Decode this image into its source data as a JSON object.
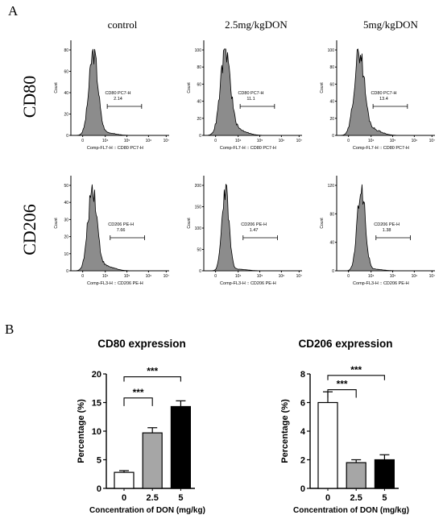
{
  "panel_labels": {
    "a": "A",
    "b": "B"
  },
  "columns": [
    "control",
    "2.5mg/kgDON",
    "5mg/kgDON"
  ],
  "rows": [
    "CD80",
    "CD206"
  ],
  "flow": {
    "ylabel": "Count",
    "cd80": {
      "gate": "CD80 PC7-H",
      "xlabel": "Comp-FL7-H :: CD80 PC7-H",
      "values": [
        "2.14",
        "11.1",
        "13.4"
      ],
      "yticks": [
        [
          "0",
          "20",
          "40",
          "60",
          "80"
        ],
        [
          "0",
          "20",
          "40",
          "60",
          "80",
          "100"
        ],
        [
          "0",
          "20",
          "40",
          "60",
          "80",
          "100"
        ]
      ]
    },
    "cd206": {
      "gate": "CD206 PE-H",
      "xlabel": "Comp-FL3-H :: CD206 PE-H",
      "values": [
        "7.66",
        "1.47",
        "1.38"
      ],
      "yticks": [
        [
          "0",
          "10",
          "20",
          "30",
          "40",
          "50"
        ],
        [
          "0",
          "50",
          "100",
          "150",
          "200"
        ],
        [
          "0",
          "40",
          "80",
          "120"
        ]
      ]
    },
    "xticks": [
      "0",
      "10⁴",
      "10⁵",
      "10⁶",
      "10⁷"
    ]
  },
  "chart_data": [
    {
      "type": "bar",
      "title": "CD80 expression",
      "xlabel": "Concentration of DON (mg/kg)",
      "ylabel": "Percentage (%)",
      "categories": [
        "0",
        "2.5",
        "5"
      ],
      "values": [
        2.8,
        9.7,
        14.3
      ],
      "errors": [
        0.3,
        0.9,
        1.0
      ],
      "colors": [
        "#ffffff",
        "#a6a6a6",
        "#000000"
      ],
      "ylim": [
        0,
        20
      ],
      "yticks": [
        "0",
        "5",
        "10",
        "15",
        "20"
      ],
      "significance": [
        {
          "label": "***",
          "from": "0",
          "to": "2.5"
        },
        {
          "label": "***",
          "from": "0",
          "to": "5"
        }
      ]
    },
    {
      "type": "bar",
      "title": "CD206 expression",
      "xlabel": "Concentration of DON (mg/kg)",
      "ylabel": "Percentage (%)",
      "categories": [
        "0",
        "2.5",
        "5"
      ],
      "values": [
        6.0,
        1.8,
        2.0
      ],
      "errors": [
        0.75,
        0.2,
        0.35
      ],
      "colors": [
        "#ffffff",
        "#a6a6a6",
        "#000000"
      ],
      "ylim": [
        0,
        8
      ],
      "yticks": [
        "0",
        "2",
        "4",
        "6",
        "8"
      ],
      "significance": [
        {
          "label": "***",
          "from": "0",
          "to": "2.5"
        },
        {
          "label": "***",
          "from": "0",
          "to": "5"
        }
      ]
    }
  ]
}
